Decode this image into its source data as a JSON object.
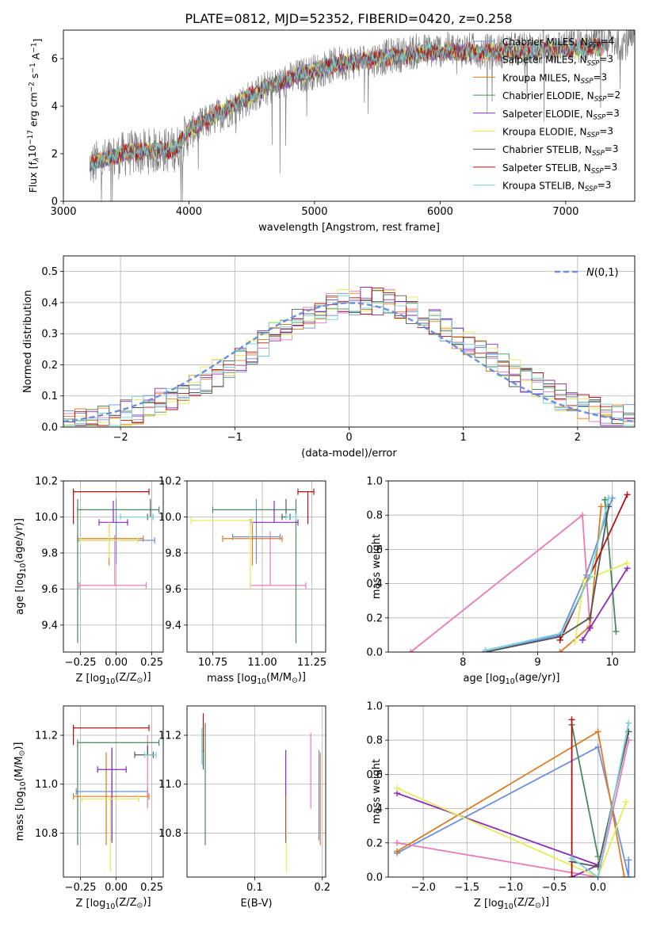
{
  "figure_title": "PLATE=0812, MJD=52352, FIBERID=0420, z=0.258",
  "colors": {
    "Chabrier MILES": "#6a8fdc",
    "Salpeter MILES": "#e87ab8",
    "Kroupa MILES": "#e07a20",
    "Chabrier ELODIE": "#4a8a5a",
    "Salpeter ELODIE": "#8a2ab8",
    "Kroupa ELODIE": "#e4ec5a",
    "Chabrier STELIB": "#555555",
    "Salpeter STELIB": "#b01010",
    "Kroupa STELIB": "#78d0d8",
    "data": "#808080",
    "normal": "#6a8fdc"
  },
  "chart_data": [
    {
      "type": "line",
      "id": "spectrum",
      "xlabel": "wavelength [Angstrom, rest frame]",
      "ylabel": "Flux [f$_\\lambda$10$^{-17}$ erg cm$^{-2}$ s$^{-1}$ A$^{-1}$]",
      "ylabel_parts": [
        "Flux [f",
        "λ",
        "10",
        "−17",
        " erg cm",
        "−2",
        " s",
        "−1",
        " A",
        "−1",
        "]"
      ],
      "xlim": [
        3000,
        7550
      ],
      "ylim": [
        0,
        7.2
      ],
      "xticks": [
        3000,
        4000,
        5000,
        6000,
        7000
      ],
      "yticks": [
        0,
        2,
        4,
        6
      ],
      "grid": false,
      "legend_position": "top-right",
      "legend": [
        {
          "label": "Chabrier MILES, N",
          "sub": "SSP",
          "suffix": "=4",
          "color_key": "Chabrier MILES"
        },
        {
          "label": "Salpeter MILES, N",
          "sub": "SSP",
          "suffix": "=3",
          "color_key": "Salpeter MILES"
        },
        {
          "label": "Kroupa MILES, N",
          "sub": "SSP",
          "suffix": "=3",
          "color_key": "Kroupa MILES"
        },
        {
          "label": "Chabrier ELODIE, N",
          "sub": "SSP",
          "suffix": "=2",
          "color_key": "Chabrier ELODIE"
        },
        {
          "label": "Salpeter ELODIE, N",
          "sub": "SSP",
          "suffix": "=3",
          "color_key": "Salpeter ELODIE"
        },
        {
          "label": "Kroupa ELODIE, N",
          "sub": "SSP",
          "suffix": "=3",
          "color_key": "Kroupa ELODIE"
        },
        {
          "label": "Chabrier STELIB, N",
          "sub": "SSP",
          "suffix": "=3",
          "color_key": "Chabrier STELIB"
        },
        {
          "label": "Salpeter STELIB, N",
          "sub": "SSP",
          "suffix": "=3",
          "color_key": "Salpeter STELIB"
        },
        {
          "label": "Kroupa STELIB, N",
          "sub": "SSP",
          "suffix": "=3",
          "color_key": "Kroupa STELIB"
        }
      ],
      "observed_start": 3210,
      "continuum": [
        [
          3210,
          1.5
        ],
        [
          3500,
          2.0
        ],
        [
          3700,
          2.1
        ],
        [
          3900,
          2.2
        ],
        [
          4000,
          2.9
        ],
        [
          4300,
          3.8
        ],
        [
          4600,
          4.7
        ],
        [
          4900,
          5.3
        ],
        [
          5200,
          5.8
        ],
        [
          5500,
          6.0
        ],
        [
          5800,
          6.3
        ],
        [
          6100,
          6.4
        ],
        [
          6400,
          6.3
        ],
        [
          6700,
          6.4
        ],
        [
          7000,
          6.5
        ],
        [
          7300,
          6.7
        ]
      ],
      "model_continuum": [
        [
          3210,
          1.6
        ],
        [
          3500,
          2.05
        ],
        [
          3700,
          2.1
        ],
        [
          3900,
          2.2
        ],
        [
          4000,
          3.0
        ],
        [
          4300,
          3.9
        ],
        [
          4600,
          4.75
        ],
        [
          4900,
          5.35
        ],
        [
          5200,
          5.8
        ],
        [
          5500,
          6.0
        ],
        [
          5800,
          6.2
        ],
        [
          6100,
          6.3
        ],
        [
          6400,
          6.25
        ],
        [
          6700,
          6.35
        ],
        [
          7000,
          6.4
        ],
        [
          7300,
          6.5
        ]
      ]
    },
    {
      "type": "histogram",
      "id": "residuals",
      "xlabel": "(data-model)/error",
      "ylabel": "Normed distribution",
      "xlim": [
        -2.5,
        2.5
      ],
      "ylim": [
        0,
        0.55
      ],
      "xticks": [
        -2,
        -1,
        0,
        1,
        2
      ],
      "yticks": [
        0.0,
        0.1,
        0.2,
        0.3,
        0.4,
        0.5
      ],
      "grid": true,
      "legend_position": "top-right",
      "legend_label": "$\\mathcal{N}(0,1)$",
      "bin_width": 0.1
    },
    {
      "type": "scatter",
      "id": "age_vs_Z",
      "xlabel": "Z [log$_{10}$(Z/Z$_\\odot$)]",
      "ylabel": "age  [log$_{10}$(age/yr)]",
      "xlim": [
        -0.37,
        0.33
      ],
      "ylim": [
        9.25,
        10.2
      ],
      "xticks": [
        -0.25,
        0.0,
        0.25
      ],
      "yticks": [
        9.4,
        9.6,
        9.8,
        10.0,
        10.2
      ],
      "grid": true,
      "points": [
        {
          "model": "Chabrier MILES",
          "x": 0.0,
          "y": 9.87,
          "xerr": [
            0.27,
            0.27
          ],
          "yerr": [
            0.13,
            0.23
          ]
        },
        {
          "model": "Salpeter MILES",
          "x": -0.01,
          "y": 9.62,
          "xerr": [
            0.25,
            0.22
          ],
          "yerr": [
            0.0,
            0.28
          ]
        },
        {
          "model": "Kroupa MILES",
          "x": -0.05,
          "y": 9.88,
          "xerr": [
            0.22,
            0.24
          ],
          "yerr": [
            0.15,
            0.09
          ]
        },
        {
          "model": "Chabrier ELODIE",
          "x": -0.27,
          "y": 10.04,
          "xerr": [
            0.0,
            0.57
          ],
          "yerr": [
            0.74,
            0.06
          ]
        },
        {
          "model": "Salpeter ELODIE",
          "x": -0.02,
          "y": 9.97,
          "xerr": [
            0.1,
            0.1
          ],
          "yerr": [
            0.0,
            0.12
          ]
        },
        {
          "model": "Kroupa ELODIE",
          "x": -0.05,
          "y": 9.87,
          "xerr": [
            0.2,
            0.2
          ],
          "yerr": [
            0.1,
            0.1
          ]
        },
        {
          "model": "Chabrier STELIB",
          "x": 0.24,
          "y": 10.0,
          "xerr": [
            0.02,
            0.02
          ],
          "yerr": [
            0.0,
            0.1
          ]
        },
        {
          "model": "Salpeter STELIB",
          "x": -0.3,
          "y": 10.14,
          "xerr": [
            0.0,
            0.53
          ],
          "yerr": [
            0.18,
            0.0
          ]
        },
        {
          "model": "Kroupa STELIB",
          "x": 0.03,
          "y": 10.0,
          "xerr": [
            0.0,
            0.23
          ],
          "yerr": [
            0.0,
            0.0
          ]
        }
      ]
    },
    {
      "type": "scatter",
      "id": "age_vs_mass",
      "xlabel": "mass [log$_{10}$(M/M$_\\odot$)]",
      "ylabel": "",
      "xlim": [
        10.62,
        11.32
      ],
      "ylim": [
        9.25,
        10.2
      ],
      "xticks": [
        10.75,
        11.0,
        11.25
      ],
      "yticks": [
        9.4,
        9.6,
        9.8,
        10.0,
        10.2
      ],
      "grid": true,
      "points": [
        {
          "model": "Chabrier MILES",
          "x": 10.97,
          "y": 9.89,
          "xerr": [
            0.12,
            0.12
          ],
          "yerr": [
            0.15,
            0.21
          ]
        },
        {
          "model": "Salpeter MILES",
          "x": 11.04,
          "y": 9.62,
          "xerr": [
            0.1,
            0.18
          ],
          "yerr": [
            0.0,
            0.3
          ]
        },
        {
          "model": "Kroupa MILES",
          "x": 10.95,
          "y": 9.88,
          "xerr": [
            0.15,
            0.15
          ],
          "yerr": [
            0.15,
            0.09
          ]
        },
        {
          "model": "Chabrier ELODIE",
          "x": 11.17,
          "y": 10.04,
          "xerr": [
            0.42,
            0.0
          ],
          "yerr": [
            0.74,
            0.06
          ]
        },
        {
          "model": "Salpeter ELODIE",
          "x": 11.06,
          "y": 9.97,
          "xerr": [
            0.12,
            0.12
          ],
          "yerr": [
            0.0,
            0.12
          ]
        },
        {
          "model": "Kroupa ELODIE",
          "x": 10.94,
          "y": 9.98,
          "xerr": [
            0.3,
            0.01
          ],
          "yerr": [
            0.38,
            0.0
          ]
        },
        {
          "model": "Chabrier STELIB",
          "x": 11.12,
          "y": 10.0,
          "xerr": [
            0.02,
            0.02
          ],
          "yerr": [
            0.0,
            0.1
          ]
        },
        {
          "model": "Salpeter STELIB",
          "x": 11.23,
          "y": 10.14,
          "xerr": [
            0.05,
            0.03
          ],
          "yerr": [
            0.18,
            0.0
          ]
        },
        {
          "model": "Kroupa STELIB",
          "x": 11.12,
          "y": 10.0,
          "xerr": [
            0.0,
            0.05
          ],
          "yerr": [
            0.0,
            0.0
          ]
        }
      ]
    },
    {
      "type": "line",
      "id": "massweight_vs_age",
      "xlabel": "age  [log$_{10}$(age/yr)]",
      "ylabel": "mass weight",
      "xlim": [
        7.0,
        10.3
      ],
      "ylim": [
        0,
        1.0
      ],
      "xticks": [
        8,
        9,
        10
      ],
      "yticks": [
        0.0,
        0.2,
        0.4,
        0.6,
        0.8,
        1.0
      ],
      "grid": true,
      "series": [
        {
          "model": "Chabrier MILES",
          "x": [
            8.3,
            9.3,
            9.65,
            10.0
          ],
          "y": [
            0.0,
            0.1,
            0.45,
            0.9
          ]
        },
        {
          "model": "Salpeter MILES",
          "x": [
            7.3,
            9.6,
            9.7
          ],
          "y": [
            0.0,
            0.8,
            0.15
          ]
        },
        {
          "model": "Kroupa MILES",
          "x": [
            9.3,
            9.7,
            9.85
          ],
          "y": [
            0.0,
            0.15,
            0.85
          ]
        },
        {
          "model": "Chabrier ELODIE",
          "x": [
            9.9,
            10.05
          ],
          "y": [
            0.89,
            0.12
          ]
        },
        {
          "model": "Salpeter ELODIE",
          "x": [
            9.6,
            9.7,
            10.2
          ],
          "y": [
            0.07,
            0.14,
            0.49
          ]
        },
        {
          "model": "Kroupa ELODIE",
          "x": [
            9.5,
            9.62,
            10.2
          ],
          "y": [
            0.06,
            0.42,
            0.52
          ]
        },
        {
          "model": "Chabrier STELIB",
          "x": [
            8.3,
            9.3,
            9.7,
            9.95
          ],
          "y": [
            0.0,
            0.09,
            0.2,
            0.85
          ]
        },
        {
          "model": "Salpeter STELIB",
          "x": [
            9.3,
            10.2
          ],
          "y": [
            0.07,
            0.92
          ]
        },
        {
          "model": "Kroupa STELIB",
          "x": [
            8.3,
            9.32,
            9.7,
            9.95
          ],
          "y": [
            0.01,
            0.11,
            0.44,
            0.9
          ]
        }
      ]
    },
    {
      "type": "scatter",
      "id": "mass_vs_Z",
      "xlabel": "Z [log$_{10}$(Z/Z$_\\odot$)]",
      "ylabel": "mass [log$_{10}$(M/M$_\\odot$)]",
      "xlim": [
        -0.37,
        0.33
      ],
      "ylim": [
        10.62,
        11.32
      ],
      "xticks": [
        -0.25,
        0.0,
        0.25
      ],
      "yticks": [
        10.8,
        11.0,
        11.2
      ],
      "grid": true,
      "points": [
        {
          "model": "Chabrier MILES",
          "x": -0.03,
          "y": 10.97,
          "xerr": [
            0.25,
            0.25
          ],
          "yerr": [
            0.2,
            0.17
          ]
        },
        {
          "model": "Salpeter MILES",
          "x": 0.22,
          "y": 10.96,
          "xerr": [
            0.0,
            0.0
          ],
          "yerr": [
            0.06,
            0.24
          ]
        },
        {
          "model": "Kroupa MILES",
          "x": -0.07,
          "y": 10.95,
          "xerr": [
            0.23,
            0.3
          ],
          "yerr": [
            0.2,
            0.18
          ]
        },
        {
          "model": "Chabrier ELODIE",
          "x": -0.27,
          "y": 11.17,
          "xerr": [
            0.0,
            0.57
          ],
          "yerr": [
            0.42,
            0.0
          ]
        },
        {
          "model": "Salpeter ELODIE",
          "x": -0.03,
          "y": 11.06,
          "xerr": [
            0.1,
            0.1
          ],
          "yerr": [
            0.3,
            0.09
          ]
        },
        {
          "model": "Kroupa ELODIE",
          "x": -0.04,
          "y": 10.94,
          "xerr": [
            0.2,
            0.2
          ],
          "yerr": [
            0.3,
            0.01
          ]
        },
        {
          "model": "Chabrier STELIB",
          "x": 0.22,
          "y": 11.12,
          "xerr": [
            0.09,
            0.04
          ],
          "yerr": [
            0.0,
            0.04
          ]
        },
        {
          "model": "Salpeter STELIB",
          "x": -0.3,
          "y": 11.23,
          "xerr": [
            0.0,
            0.53
          ],
          "yerr": [
            0.07,
            0.0
          ]
        },
        {
          "model": "Kroupa STELIB",
          "x": 0.26,
          "y": 11.12,
          "xerr": [
            0.06,
            0.02
          ],
          "yerr": [
            0.0,
            0.0
          ]
        }
      ]
    },
    {
      "type": "scatter",
      "id": "mass_vs_EBV",
      "xlabel": "E(B-V)",
      "ylabel": "",
      "xlim": [
        0.0,
        0.205
      ],
      "ylim": [
        10.62,
        11.32
      ],
      "xticks": [
        0.1,
        0.2
      ],
      "yticks": [
        10.8,
        11.0,
        11.2
      ],
      "grid": true,
      "points": [
        {
          "model": "Chabrier MILES",
          "x": 0.195,
          "y": 10.97,
          "yerr": [
            0.2,
            0.17
          ]
        },
        {
          "model": "Salpeter MILES",
          "x": 0.183,
          "y": 11.03,
          "yerr": [
            0.13,
            0.18
          ]
        },
        {
          "model": "Kroupa MILES",
          "x": 0.197,
          "y": 10.95,
          "yerr": [
            0.2,
            0.18
          ]
        },
        {
          "model": "Chabrier ELODIE",
          "x": 0.027,
          "y": 11.0,
          "yerr": [
            0.25,
            0.25
          ]
        },
        {
          "model": "Salpeter ELODIE",
          "x": 0.146,
          "y": 10.96,
          "yerr": [
            0.2,
            0.18
          ]
        },
        {
          "model": "Kroupa ELODIE",
          "x": 0.147,
          "y": 10.9,
          "yerr": [
            0.26,
            0.05
          ]
        },
        {
          "model": "Chabrier STELIB",
          "x": 0.024,
          "y": 11.1,
          "yerr": [
            0.04,
            0.04
          ]
        },
        {
          "model": "Salpeter STELIB",
          "x": 0.024,
          "y": 11.18,
          "yerr": [
            0.05,
            0.11
          ]
        },
        {
          "model": "Kroupa STELIB",
          "x": 0.022,
          "y": 11.17,
          "yerr": [
            0.09,
            0.06
          ]
        }
      ]
    },
    {
      "type": "line",
      "id": "massweight_vs_Z",
      "xlabel": "Z [log$_{10}$(Z/Z$_\\odot$)]",
      "ylabel": "mass weight",
      "xlim": [
        -2.4,
        0.42
      ],
      "ylim": [
        0,
        1.0
      ],
      "xticks": [
        -2.0,
        -1.5,
        -1.0,
        -0.5,
        0.0
      ],
      "yticks": [
        0.0,
        0.2,
        0.4,
        0.6,
        0.8,
        1.0
      ],
      "grid": true,
      "series": [
        {
          "model": "Chabrier MILES",
          "x": [
            -2.3,
            0.0,
            0.35,
            0.35
          ],
          "y": [
            0.14,
            0.76,
            0.0,
            0.1
          ]
        },
        {
          "model": "Salpeter MILES",
          "x": [
            -2.3,
            0.0,
            0.35
          ],
          "y": [
            0.2,
            0.0,
            0.8
          ]
        },
        {
          "model": "Kroupa MILES",
          "x": [
            -2.3,
            0.0,
            0.3
          ],
          "y": [
            0.15,
            0.85,
            0.0
          ]
        },
        {
          "model": "Chabrier ELODIE",
          "x": [
            -0.3,
            0.0
          ],
          "y": [
            0.89,
            0.12
          ]
        },
        {
          "model": "Salpeter ELODIE",
          "x": [
            -2.3,
            0.0,
            -0.3
          ],
          "y": [
            0.49,
            0.07,
            0.0
          ]
        },
        {
          "model": "Kroupa ELODIE",
          "x": [
            -2.3,
            0.0,
            0.32
          ],
          "y": [
            0.52,
            0.0,
            0.44
          ]
        },
        {
          "model": "Chabrier STELIB",
          "x": [
            -0.3,
            0.0,
            0.35
          ],
          "y": [
            0.09,
            0.06,
            0.85
          ]
        },
        {
          "model": "Salpeter STELIB",
          "x": [
            -0.3,
            -0.3
          ],
          "y": [
            0.0,
            0.92
          ]
        },
        {
          "model": "Kroupa STELIB",
          "x": [
            -0.3,
            0.0,
            0.35
          ],
          "y": [
            0.11,
            0.0,
            0.9
          ]
        }
      ]
    }
  ]
}
